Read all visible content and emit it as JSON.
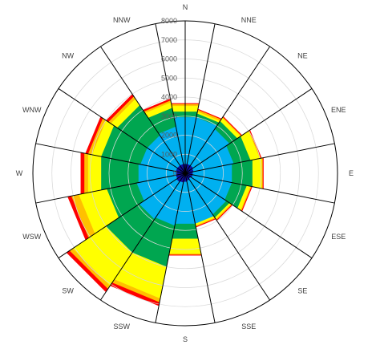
{
  "chart_data": {
    "type": "radar-stacked",
    "directions": [
      "N",
      "NNE",
      "NE",
      "ENE",
      "E",
      "ESE",
      "SE",
      "SSE",
      "S",
      "SSW",
      "SW",
      "WSW",
      "W",
      "WNW",
      "NW",
      "NNW"
    ],
    "radial_ticks": [
      "0",
      "1000",
      "2000",
      "3000",
      "4000",
      "5000",
      "6000",
      "7000",
      "8000"
    ],
    "rmax": 8000,
    "colors": [
      "#1010a0",
      "#00b0f0",
      "#00a650",
      "#ffff00",
      "#ffc000",
      "#ff0000"
    ],
    "series": [
      {
        "values": [
          500,
          500,
          500,
          450,
          400,
          400,
          350,
          400,
          450,
          500,
          550,
          500,
          500,
          500,
          500,
          500
        ]
      },
      {
        "values": [
          3000,
          3000,
          2800,
          2600,
          2500,
          2500,
          2600,
          2700,
          2700,
          2800,
          2900,
          2600,
          2500,
          2400,
          2400,
          2500
        ]
      },
      {
        "values": [
          3300,
          3200,
          3300,
          3500,
          3600,
          3300,
          2800,
          2600,
          3500,
          5000,
          5000,
          4200,
          4500,
          4500,
          4300,
          3500
        ]
      },
      {
        "values": [
          3600,
          3300,
          3500,
          4000,
          4100,
          3500,
          2900,
          2800,
          4300,
          6700,
          7100,
          5700,
          5200,
          5000,
          4700,
          3800
        ]
      },
      {
        "values": [
          3700,
          3400,
          3550,
          4050,
          4150,
          3550,
          2950,
          2850,
          4350,
          6900,
          7300,
          6100,
          5400,
          5200,
          4850,
          3900
        ]
      },
      {
        "values": [
          3750,
          3450,
          3600,
          4100,
          4200,
          3600,
          3000,
          2900,
          4400,
          7100,
          7500,
          6300,
          5600,
          5350,
          5000,
          4000
        ]
      }
    ]
  }
}
